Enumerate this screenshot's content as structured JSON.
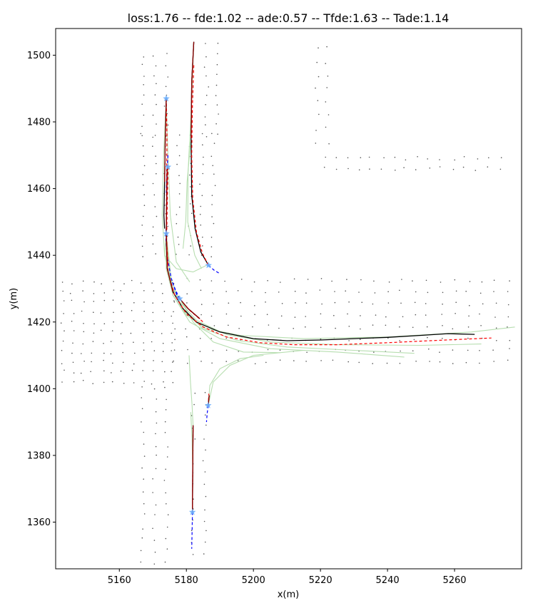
{
  "chart_data": {
    "type": "line",
    "title": "loss:1.76 -- fde:1.02 -- ade:0.57 -- Tfde:1.63 -- Tade:1.14",
    "xlabel": "x(m)",
    "ylabel": "y(m)",
    "xlim": [
      5141,
      5280
    ],
    "ylim": [
      1346,
      1508
    ],
    "xticks": [
      5160,
      5180,
      5200,
      5220,
      5240,
      5260
    ],
    "yticks": [
      1360,
      1380,
      1400,
      1420,
      1440,
      1460,
      1480,
      1500
    ],
    "grid": false,
    "colors": {
      "history": "#0000ff",
      "ground_truth": "#000000",
      "prediction": "#ff0000",
      "hypotheses": "#b7deb0",
      "current_position": "#6aaefc",
      "map_points": "#555555",
      "forecast": "#8b0000"
    },
    "map_point_groups": [
      {
        "x_range": [
          5167,
          5176
        ],
        "y_range": [
          1476,
          1500
        ],
        "step": [
          3.5,
          3
        ]
      },
      {
        "x_range": [
          5167,
          5188
        ],
        "y_range": [
          1440,
          1476
        ],
        "step": [
          3.5,
          3
        ]
      },
      {
        "x_range": [
          5186,
          5189
        ],
        "y_range": [
          1476,
          1504
        ],
        "step": [
          3,
          3
        ]
      },
      {
        "x_range": [
          5143,
          5176
        ],
        "y_range": [
          1402,
          1432
        ],
        "step": [
          3,
          3
        ]
      },
      {
        "x_range": [
          5176,
          5278
        ],
        "y_range": [
          1408,
          1435
        ],
        "step": [
          4,
          3.5
        ]
      },
      {
        "x_range": [
          5219,
          5222
        ],
        "y_range": [
          1474,
          1503
        ],
        "step": [
          3,
          4
        ]
      },
      {
        "x_range": [
          5221,
          5275
        ],
        "y_range": [
          1466,
          1470
        ],
        "step": [
          3.5,
          3
        ]
      },
      {
        "x_range": [
          5167,
          5176
        ],
        "y_range": [
          1348,
          1402
        ],
        "step": [
          3.5,
          3.5
        ]
      },
      {
        "x_range": [
          5182,
          5186
        ],
        "y_range": [
          1350,
          1402
        ],
        "step": [
          3.5,
          3.5
        ]
      }
    ],
    "agents": [
      {
        "current": [
          5174,
          1487
        ],
        "history": [
          [
            5174,
            1487
          ],
          [
            5174,
            1484.5
          ],
          [
            5174,
            1482
          ]
        ],
        "ground_truth": [
          [
            5174,
            1487
          ],
          [
            5173.7,
            1475
          ],
          [
            5173.5,
            1462
          ],
          [
            5173.3,
            1452
          ],
          [
            5173.5,
            1448
          ]
        ],
        "prediction": [
          [
            5174,
            1487
          ],
          [
            5174.2,
            1476
          ],
          [
            5174.1,
            1462
          ],
          [
            5174.0,
            1450
          ]
        ]
      },
      {
        "current": [
          5186.6,
          1437
        ],
        "history": [
          [
            5186.6,
            1437
          ],
          [
            5188.3,
            1435.5
          ],
          [
            5190,
            1434.5
          ]
        ],
        "ground_truth": [
          [
            5182.2,
            1504
          ],
          [
            5181.6,
            1492
          ],
          [
            5181.4,
            1475
          ],
          [
            5181.6,
            1458
          ],
          [
            5182.6,
            1448
          ],
          [
            5184.3,
            1441
          ],
          [
            5186.6,
            1437
          ]
        ],
        "prediction": [
          [
            5182.2,
            1497
          ],
          [
            5181.8,
            1485
          ],
          [
            5181.6,
            1470
          ],
          [
            5181.9,
            1457
          ],
          [
            5183.0,
            1447
          ],
          [
            5184.8,
            1440.5
          ],
          [
            5186.6,
            1437
          ]
        ]
      },
      {
        "current": [
          5174.5,
          1466.5
        ],
        "history": [
          [
            5174.5,
            1470
          ],
          [
            5174.3,
            1466.5
          ],
          [
            5174.1,
            1462
          ],
          [
            5174.0,
            1458
          ]
        ],
        "ground_truth": [
          [
            5174.3,
            1466.5
          ],
          [
            5174.1,
            1455
          ],
          [
            5174.0,
            1447
          ],
          [
            5174.2,
            1440
          ]
        ],
        "prediction": [
          [
            5174.5,
            1466.5
          ],
          [
            5174.3,
            1455
          ],
          [
            5174.1,
            1445
          ],
          [
            5174.5,
            1437
          ]
        ]
      },
      {
        "current": [
          5174,
          1446.5
        ],
        "history": [
          [
            5174,
            1448
          ],
          [
            5173.8,
            1446.5
          ],
          [
            5174.2,
            1440
          ],
          [
            5175.5,
            1433
          ],
          [
            5177.5,
            1427
          ]
        ],
        "ground_truth": [
          [
            5174,
            1446.5
          ],
          [
            5174.3,
            1436
          ],
          [
            5176,
            1429
          ],
          [
            5179,
            1424
          ],
          [
            5183,
            1420
          ],
          [
            5190,
            1417
          ],
          [
            5200,
            1415
          ],
          [
            5210,
            1414.4
          ],
          [
            5220,
            1414.6
          ],
          [
            5230,
            1415
          ],
          [
            5240,
            1415.4
          ],
          [
            5250,
            1416.0
          ],
          [
            5258,
            1416.5
          ],
          [
            5266,
            1416.3
          ]
        ],
        "prediction": [
          [
            5174,
            1446.5
          ],
          [
            5174.5,
            1435
          ],
          [
            5176.5,
            1428
          ],
          [
            5180,
            1422.5
          ],
          [
            5185,
            1418.5
          ],
          [
            5192,
            1415.5
          ],
          [
            5202,
            1413.8
          ],
          [
            5212,
            1413.2
          ],
          [
            5225,
            1413.2
          ],
          [
            5240,
            1413.8
          ],
          [
            5255,
            1414.5
          ],
          [
            5271,
            1415.2
          ]
        ]
      },
      {
        "current": [
          5178,
          1427
        ],
        "history": [
          [
            5178,
            1427
          ],
          [
            5176.8,
            1429.5
          ],
          [
            5175.8,
            1432
          ]
        ],
        "ground_truth": [
          [
            5178,
            1427
          ],
          [
            5180.5,
            1424
          ],
          [
            5184,
            1421
          ]
        ],
        "prediction": [
          [
            5178,
            1427
          ],
          [
            5181,
            1423.5
          ],
          [
            5185,
            1420
          ]
        ]
      },
      {
        "current": [
          5186.5,
          1395
        ],
        "history": [
          [
            5186.5,
            1395
          ],
          [
            5186.2,
            1392.5
          ],
          [
            5186,
            1390
          ]
        ],
        "ground_truth": [
          [
            5186.5,
            1395
          ],
          [
            5186.8,
            1398
          ]
        ],
        "prediction": [
          [
            5186.5,
            1395
          ],
          [
            5186.7,
            1398.5
          ]
        ]
      },
      {
        "current": [
          5181.8,
          1363
        ],
        "history": [
          [
            5181.8,
            1363
          ],
          [
            5181.7,
            1357
          ],
          [
            5181.6,
            1352
          ]
        ],
        "ground_truth": [
          [
            5181.8,
            1363
          ],
          [
            5181.9,
            1375
          ],
          [
            5182.0,
            1389
          ]
        ],
        "prediction": [
          [
            5181.8,
            1363
          ],
          [
            5181.9,
            1376
          ],
          [
            5182.0,
            1388
          ]
        ]
      }
    ],
    "hypotheses": [
      [
        [
          5174,
          1487
        ],
        [
          5173.2,
          1470
        ],
        [
          5172.8,
          1452
        ],
        [
          5173.5,
          1440
        ],
        [
          5176,
          1430
        ],
        [
          5180,
          1424
        ]
      ],
      [
        [
          5174,
          1487
        ],
        [
          5174.5,
          1470
        ],
        [
          5175.2,
          1452
        ],
        [
          5177,
          1438
        ],
        [
          5181,
          1432
        ]
      ],
      [
        [
          5182.2,
          1504
        ],
        [
          5181.5,
          1485
        ],
        [
          5180.5,
          1465
        ],
        [
          5180.4,
          1450
        ],
        [
          5182.5,
          1440
        ],
        [
          5184.5,
          1436
        ]
      ],
      [
        [
          5181.3,
          1474
        ],
        [
          5180.2,
          1462
        ],
        [
          5179.8,
          1450
        ],
        [
          5179.0,
          1442
        ]
      ],
      [
        [
          5174,
          1446.5
        ],
        [
          5173.5,
          1440
        ],
        [
          5177,
          1436
        ],
        [
          5182,
          1435
        ],
        [
          5186,
          1437
        ]
      ],
      [
        [
          5174,
          1446.5
        ],
        [
          5174,
          1436
        ],
        [
          5176,
          1428
        ],
        [
          5180,
          1422
        ],
        [
          5186,
          1418
        ],
        [
          5196,
          1416
        ],
        [
          5215,
          1415
        ],
        [
          5240,
          1415.5
        ],
        [
          5265,
          1417
        ],
        [
          5278,
          1418.5
        ]
      ],
      [
        [
          5174,
          1446.5
        ],
        [
          5175,
          1434
        ],
        [
          5178,
          1426
        ],
        [
          5183,
          1420.5
        ],
        [
          5192,
          1416.2
        ],
        [
          5205,
          1414.0
        ],
        [
          5225,
          1413.2
        ],
        [
          5250,
          1413.0
        ],
        [
          5268,
          1413.4
        ]
      ],
      [
        [
          5174,
          1446.5
        ],
        [
          5175.2,
          1432
        ],
        [
          5179,
          1423.5
        ],
        [
          5185,
          1418
        ],
        [
          5195,
          1414.5
        ],
        [
          5210,
          1412.5
        ],
        [
          5230,
          1411.5
        ],
        [
          5248,
          1410.6
        ]
      ],
      [
        [
          5178,
          1427
        ],
        [
          5182,
          1420
        ],
        [
          5188,
          1414
        ],
        [
          5197,
          1411
        ],
        [
          5208,
          1410.8
        ]
      ],
      [
        [
          5174,
          1446.5
        ],
        [
          5176,
          1428
        ],
        [
          5181,
          1420
        ],
        [
          5190,
          1415
        ],
        [
          5205,
          1412
        ],
        [
          5225,
          1411
        ],
        [
          5245,
          1409.5
        ]
      ],
      [
        [
          5186.5,
          1395
        ],
        [
          5187,
          1401
        ],
        [
          5190,
          1406
        ],
        [
          5196,
          1409
        ],
        [
          5203,
          1410
        ]
      ],
      [
        [
          5186.5,
          1395
        ],
        [
          5188,
          1402
        ],
        [
          5193,
          1407
        ],
        [
          5200,
          1410
        ],
        [
          5215,
          1411.5
        ]
      ],
      [
        [
          5182,
          1389
        ],
        [
          5181.7,
          1395
        ],
        [
          5181.2,
          1402
        ],
        [
          5180.8,
          1410
        ]
      ],
      [
        [
          5181.9,
          1375
        ],
        [
          5181.7,
          1385
        ],
        [
          5181.3,
          1393
        ]
      ]
    ]
  }
}
